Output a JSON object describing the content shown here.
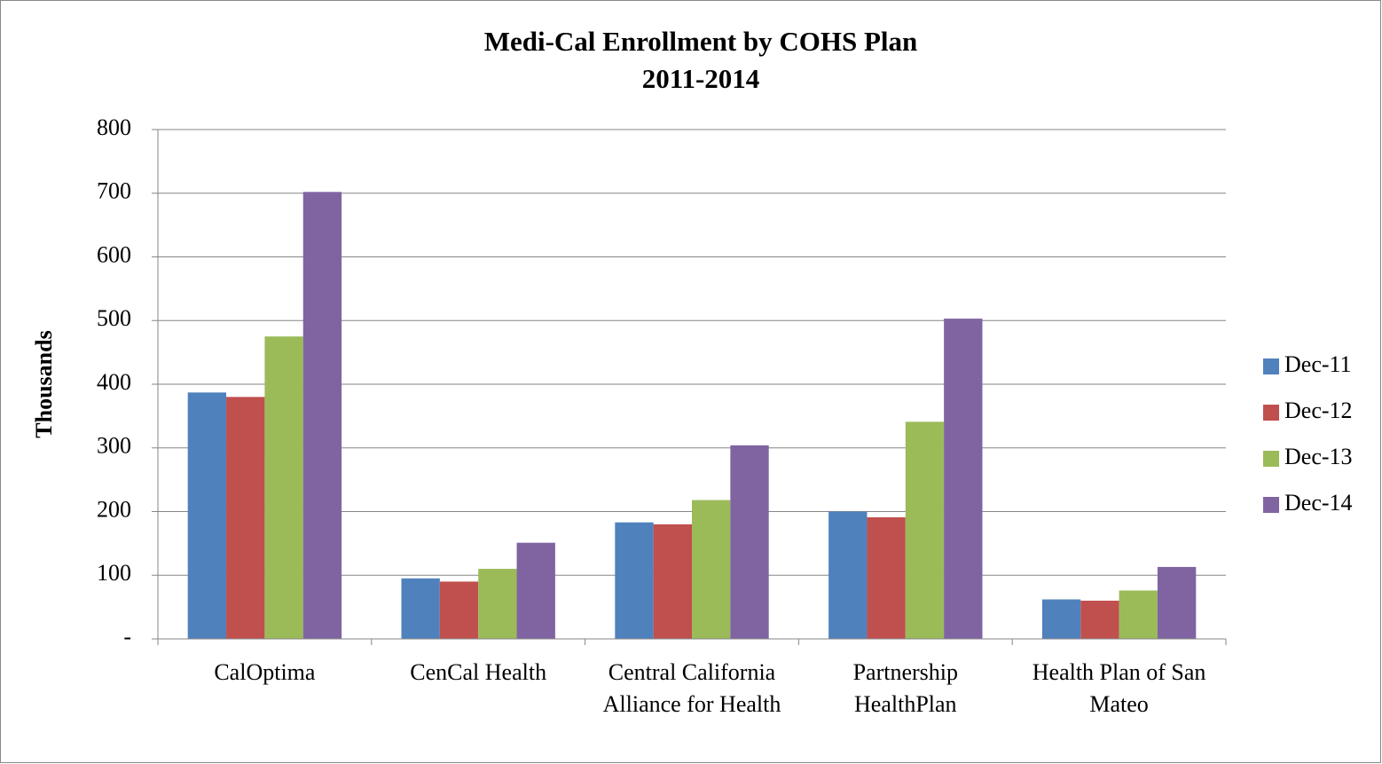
{
  "chart_data": {
    "type": "bar",
    "title": "Medi-Cal Enrollment by COHS Plan",
    "subtitle": "2011-2014",
    "y_label": "Thousands",
    "categories": [
      "CalOptima",
      "CenCal Health",
      "Central California Alliance for Health",
      "Partnership HealthPlan",
      "Health Plan of San Mateo"
    ],
    "series": [
      {
        "name": "Dec-11",
        "color": "#4f81bd",
        "values": [
          387,
          95,
          183,
          200,
          62
        ]
      },
      {
        "name": "Dec-12",
        "color": "#c0504d",
        "values": [
          380,
          90,
          180,
          191,
          60
        ]
      },
      {
        "name": "Dec-13",
        "color": "#9bbb59",
        "values": [
          475,
          110,
          218,
          341,
          76
        ]
      },
      {
        "name": "Dec-14",
        "color": "#8064a2",
        "values": [
          702,
          151,
          304,
          503,
          113
        ]
      }
    ],
    "ylim": [
      0,
      800
    ],
    "yticks": [
      {
        "value": 0,
        "label": "-"
      },
      100,
      200,
      300,
      400,
      500,
      600,
      700,
      800
    ],
    "grid": true,
    "legend": "right"
  }
}
